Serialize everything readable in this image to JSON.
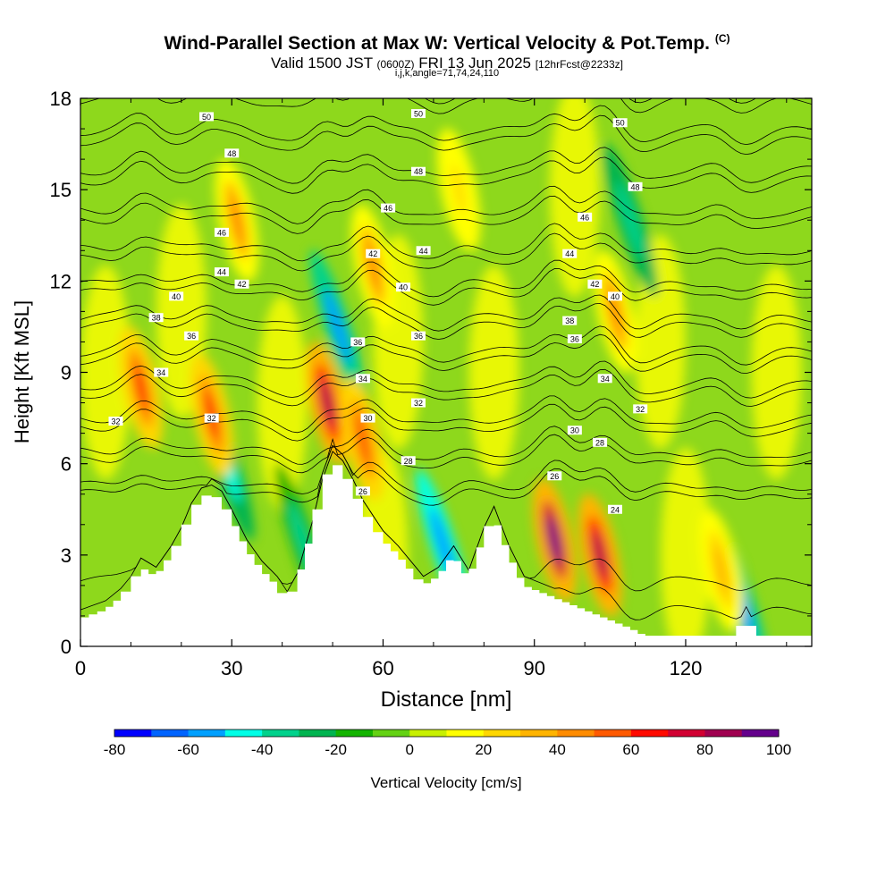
{
  "chart_data": {
    "type": "heatmap",
    "title": "Wind-Parallel Section at Max W: Vertical Velocity & Pot.Temp.",
    "title_mark": "(C)",
    "subtitle_valid": "Valid 1500 JST",
    "subtitle_utc": "(0600Z)",
    "subtitle_date": "FRI 13 Jun 2025",
    "subtitle_fcst": "[12hrFcst@2233z]",
    "subtitle_index": "i,j,k,angle=71,74,24,110",
    "xlabel": "Distance [nm]",
    "ylabel": "Height [Kft MSL]",
    "xlim": [
      0,
      145
    ],
    "ylim": [
      0,
      18
    ],
    "x_ticks": [
      "0",
      "30",
      "60",
      "90",
      "120"
    ],
    "x_tick_values": [
      0,
      30,
      60,
      90,
      120
    ],
    "y_ticks": [
      "0",
      "3",
      "6",
      "9",
      "12",
      "15",
      "18"
    ],
    "y_tick_values": [
      0,
      3,
      6,
      9,
      12,
      15,
      18
    ],
    "colorbar": {
      "label": "Vertical Velocity [cm/s]",
      "range": [
        -80,
        100
      ],
      "step": 10,
      "tick_labels": [
        "-80",
        "-60",
        "-40",
        "-20",
        "0",
        "20",
        "40",
        "60",
        "80",
        "100"
      ],
      "colors": [
        "#0000ff",
        "#0064ff",
        "#00a0ff",
        "#00ffe6",
        "#00d28c",
        "#00b450",
        "#14b400",
        "#64d214",
        "#c8f000",
        "#ffff00",
        "#ffd700",
        "#ffb400",
        "#ff8c00",
        "#ff5a00",
        "#ff0a00",
        "#d20032",
        "#a00050",
        "#64008c"
      ]
    },
    "terrain_profile": {
      "x": [
        0,
        5,
        8,
        10,
        12,
        15,
        18,
        20,
        22,
        24,
        26,
        28,
        30,
        33,
        36,
        39,
        41,
        43,
        46,
        48,
        50,
        52,
        54,
        56,
        58,
        60,
        63,
        66,
        68,
        71,
        74,
        77,
        80,
        82,
        85,
        88,
        91,
        94,
        97,
        100,
        103,
        106,
        109,
        112,
        115,
        118,
        121,
        124,
        127,
        130,
        132,
        134,
        137,
        140,
        145
      ],
      "height": [
        0.9,
        1.2,
        1.6,
        2.0,
        2.6,
        2.3,
        3.0,
        3.6,
        4.4,
        4.9,
        5.0,
        4.8,
        4.2,
        3.2,
        2.5,
        2.0,
        1.5,
        2.1,
        3.8,
        5.2,
        6.1,
        5.8,
        5.2,
        4.5,
        4.0,
        3.5,
        3.0,
        2.4,
        2.0,
        2.3,
        3.0,
        2.2,
        3.6,
        4.3,
        3.0,
        2.0,
        1.8,
        1.6,
        1.4,
        1.2,
        1.0,
        0.8,
        0.6,
        0.35,
        0.35,
        0.35,
        0.35,
        0.35,
        0.35,
        0.35,
        1.0,
        0.35,
        0.35,
        0.35,
        0.35
      ]
    },
    "updraft_cores": [
      {
        "x": 12,
        "z": 8.5,
        "w": 65
      },
      {
        "x": 26,
        "z": 7.6,
        "w": 60
      },
      {
        "x": 49,
        "z": 8.0,
        "w": 80
      },
      {
        "x": 56,
        "z": 6.8,
        "w": 55
      },
      {
        "x": 58,
        "z": 12.5,
        "w": 45
      },
      {
        "x": 31,
        "z": 14.0,
        "w": 45
      },
      {
        "x": 94,
        "z": 3.5,
        "w": 95
      },
      {
        "x": 103,
        "z": 3.0,
        "w": 80
      },
      {
        "x": 106,
        "z": 11.0,
        "w": 40
      },
      {
        "x": 127,
        "z": 2.5,
        "w": 30
      },
      {
        "x": 75,
        "z": 15.0,
        "w": 25
      }
    ],
    "downdraft_cores": [
      {
        "x": 51,
        "z": 10.5,
        "w": -40
      },
      {
        "x": 72,
        "z": 3.3,
        "w": -45
      },
      {
        "x": 29,
        "z": 6.0,
        "w": -30
      },
      {
        "x": 109,
        "z": 14.0,
        "w": -25
      },
      {
        "x": 44,
        "z": 3.5,
        "w": -20
      },
      {
        "x": 131,
        "z": 1.5,
        "w": -40
      }
    ],
    "contour_series": {
      "name": "Potential Temperature",
      "levels": [
        24,
        26,
        28,
        30,
        32,
        34,
        36,
        38,
        40,
        42,
        44,
        46,
        48,
        50
      ],
      "labels": [
        {
          "text": "24",
          "x": 106,
          "z": 4.5
        },
        {
          "text": "26",
          "x": 56,
          "z": 5.1
        },
        {
          "text": "26",
          "x": 94,
          "z": 5.6
        },
        {
          "text": "28",
          "x": 65,
          "z": 6.1
        },
        {
          "text": "28",
          "x": 103,
          "z": 6.7
        },
        {
          "text": "30",
          "x": 57,
          "z": 7.5
        },
        {
          "text": "30",
          "x": 98,
          "z": 7.1
        },
        {
          "text": "32",
          "x": 7,
          "z": 7.4
        },
        {
          "text": "32",
          "x": 26,
          "z": 7.5
        },
        {
          "text": "32",
          "x": 67,
          "z": 8.0
        },
        {
          "text": "32",
          "x": 111,
          "z": 7.8
        },
        {
          "text": "34",
          "x": 16,
          "z": 9.0
        },
        {
          "text": "34",
          "x": 56,
          "z": 8.8
        },
        {
          "text": "34",
          "x": 104,
          "z": 8.8
        },
        {
          "text": "36",
          "x": 22,
          "z": 10.2
        },
        {
          "text": "36",
          "x": 55,
          "z": 10.0
        },
        {
          "text": "36",
          "x": 67,
          "z": 10.2
        },
        {
          "text": "36",
          "x": 98,
          "z": 10.1
        },
        {
          "text": "38",
          "x": 15,
          "z": 10.8
        },
        {
          "text": "38",
          "x": 97,
          "z": 10.7
        },
        {
          "text": "40",
          "x": 19,
          "z": 11.5
        },
        {
          "text": "40",
          "x": 64,
          "z": 11.8
        },
        {
          "text": "40",
          "x": 106,
          "z": 11.5
        },
        {
          "text": "42",
          "x": 32,
          "z": 11.9
        },
        {
          "text": "42",
          "x": 58,
          "z": 12.9
        },
        {
          "text": "42",
          "x": 102,
          "z": 11.9
        },
        {
          "text": "44",
          "x": 28,
          "z": 12.3
        },
        {
          "text": "44",
          "x": 68,
          "z": 13.0
        },
        {
          "text": "44",
          "x": 97,
          "z": 12.9
        },
        {
          "text": "46",
          "x": 28,
          "z": 13.6
        },
        {
          "text": "46",
          "x": 61,
          "z": 14.4
        },
        {
          "text": "46",
          "x": 100,
          "z": 14.1
        },
        {
          "text": "48",
          "x": 30,
          "z": 16.2
        },
        {
          "text": "48",
          "x": 67,
          "z": 15.6
        },
        {
          "text": "48",
          "x": 110,
          "z": 15.1
        },
        {
          "text": "50",
          "x": 25,
          "z": 17.4
        },
        {
          "text": "50",
          "x": 67,
          "z": 17.5
        },
        {
          "text": "50",
          "x": 107,
          "z": 17.2
        }
      ]
    }
  }
}
